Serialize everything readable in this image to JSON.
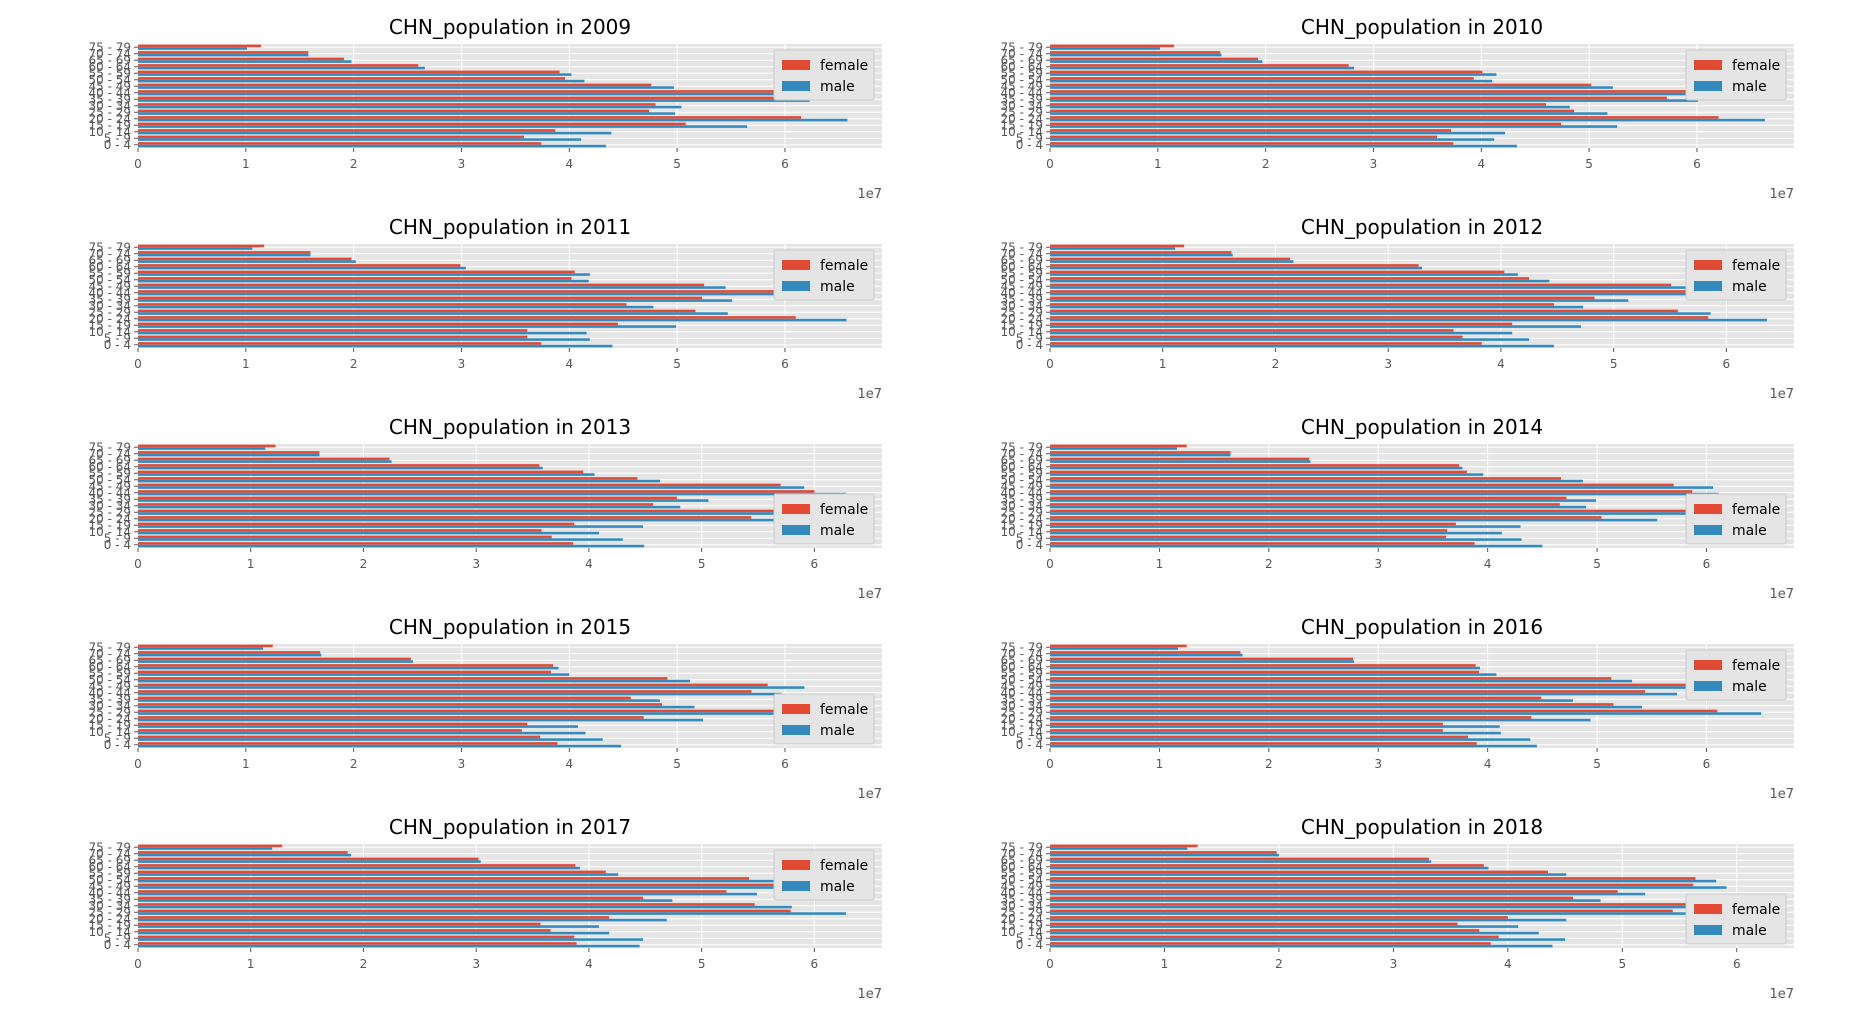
{
  "colors": {
    "female": "#E24A33",
    "male": "#348ABD",
    "axes_bg": "#E5E5E5",
    "grid": "#FFFFFF",
    "tick_text": "#555555",
    "legend_bg": "#E5E5E5",
    "legend_border": "#CCCCCC"
  },
  "chart_data": [
    {
      "type": "bar",
      "orientation": "horizontal",
      "title": "CHN_population in 2009",
      "categories": [
        "0 - 4",
        "5 - 9",
        "10 - 14",
        "15 - 19",
        "20 - 24",
        "25 - 29",
        "30 - 34",
        "35 - 39",
        "40 - 44",
        "45 - 49",
        "50 - 54",
        "55 - 59",
        "60 - 64",
        "65 - 69",
        "70 - 74",
        "75 - 79"
      ],
      "series": [
        {
          "name": "female",
          "values": [
            37400000,
            35800000,
            38700000,
            50800000,
            61500000,
            47400000,
            48000000,
            59100000,
            59000000,
            47600000,
            39600000,
            39100000,
            26000000,
            19100000,
            15800000,
            11400000
          ]
        },
        {
          "name": "male",
          "values": [
            43400000,
            41100000,
            43900000,
            56500000,
            65800000,
            49800000,
            50400000,
            62300000,
            61900000,
            49700000,
            41400000,
            40200000,
            26600000,
            19800000,
            15800000,
            10100000
          ]
        }
      ],
      "xlim": [
        0,
        69000000
      ],
      "xticks": [
        0,
        10000000,
        20000000,
        30000000,
        40000000,
        50000000,
        60000000
      ],
      "xtick_labels": [
        "0",
        "1",
        "2",
        "3",
        "4",
        "5",
        "6"
      ],
      "x_offset_label": "1e7",
      "legend": "upper-right",
      "grid": true
    },
    {
      "type": "bar",
      "orientation": "horizontal",
      "title": "CHN_population in 2010",
      "categories": [
        "0 - 4",
        "5 - 9",
        "10 - 14",
        "15 - 19",
        "20 - 24",
        "25 - 29",
        "30 - 34",
        "35 - 39",
        "40 - 44",
        "45 - 49",
        "50 - 54",
        "55 - 59",
        "60 - 64",
        "65 - 69",
        "70 - 74",
        "75 - 79"
      ],
      "series": [
        {
          "name": "female",
          "values": [
            37400000,
            35900000,
            37200000,
            47400000,
            62000000,
            48600000,
            46000000,
            57200000,
            60100000,
            50200000,
            39300000,
            40100000,
            27700000,
            19300000,
            15800000,
            11500000
          ]
        },
        {
          "name": "male",
          "values": [
            43300000,
            41200000,
            42200000,
            52600000,
            66300000,
            51700000,
            48200000,
            60100000,
            62900000,
            52200000,
            41000000,
            41400000,
            28200000,
            19700000,
            15900000,
            10200000
          ]
        }
      ],
      "xlim": [
        0,
        69000000
      ],
      "xticks": [
        0,
        10000000,
        20000000,
        30000000,
        40000000,
        50000000,
        60000000
      ],
      "xtick_labels": [
        "0",
        "1",
        "2",
        "3",
        "4",
        "5",
        "6"
      ],
      "x_offset_label": "1e7",
      "legend": "upper-right",
      "grid": true
    },
    {
      "type": "bar",
      "orientation": "horizontal",
      "title": "CHN_population in 2011",
      "categories": [
        "0 - 4",
        "5 - 9",
        "10 - 14",
        "15 - 19",
        "20 - 24",
        "25 - 29",
        "30 - 34",
        "35 - 39",
        "40 - 44",
        "45 - 49",
        "50 - 54",
        "55 - 59",
        "60 - 64",
        "65 - 69",
        "70 - 74",
        "75 - 79"
      ],
      "series": [
        {
          "name": "female",
          "values": [
            37400000,
            36100000,
            36100000,
            44500000,
            61000000,
            51700000,
            45300000,
            52300000,
            59100000,
            52500000,
            40200000,
            40500000,
            29900000,
            19800000,
            16000000,
            11700000
          ]
        },
        {
          "name": "male",
          "values": [
            44000000,
            41900000,
            41600000,
            49900000,
            65700000,
            54700000,
            47800000,
            55100000,
            60300000,
            54500000,
            41800000,
            41900000,
            30400000,
            20200000,
            16000000,
            10600000
          ]
        }
      ],
      "xlim": [
        0,
        69000000
      ],
      "xticks": [
        0,
        10000000,
        20000000,
        30000000,
        40000000,
        50000000,
        60000000
      ],
      "xtick_labels": [
        "0",
        "1",
        "2",
        "3",
        "4",
        "5",
        "6"
      ],
      "x_offset_label": "1e7",
      "legend": "upper-right",
      "grid": true
    },
    {
      "type": "bar",
      "orientation": "horizontal",
      "title": "CHN_population in 2012",
      "categories": [
        "0 - 4",
        "5 - 9",
        "10 - 14",
        "15 - 19",
        "20 - 24",
        "25 - 29",
        "30 - 34",
        "35 - 39",
        "40 - 44",
        "45 - 49",
        "50 - 54",
        "55 - 59",
        "60 - 64",
        "65 - 69",
        "70 - 74",
        "75 - 79"
      ],
      "series": [
        {
          "name": "female",
          "values": [
            38300000,
            36600000,
            35800000,
            41000000,
            58400000,
            55700000,
            44700000,
            48300000,
            58200000,
            55100000,
            42500000,
            40300000,
            32700000,
            21300000,
            16100000,
            11900000
          ]
        },
        {
          "name": "male",
          "values": [
            44700000,
            42500000,
            41000000,
            47100000,
            63600000,
            58600000,
            47300000,
            51300000,
            61600000,
            57200000,
            44300000,
            41500000,
            33000000,
            21600000,
            16200000,
            11100000
          ]
        }
      ],
      "xlim": [
        0,
        66000000
      ],
      "xticks": [
        0,
        10000000,
        20000000,
        30000000,
        40000000,
        50000000,
        60000000
      ],
      "xtick_labels": [
        "0",
        "1",
        "2",
        "3",
        "4",
        "5",
        "6"
      ],
      "x_offset_label": "1e7",
      "legend": "upper-right",
      "grid": true
    },
    {
      "type": "bar",
      "orientation": "horizontal",
      "title": "CHN_population in 2013",
      "categories": [
        "0 - 4",
        "5 - 9",
        "10 - 14",
        "15 - 19",
        "20 - 24",
        "25 - 29",
        "30 - 34",
        "35 - 39",
        "40 - 44",
        "45 - 49",
        "50 - 54",
        "55 - 59",
        "60 - 64",
        "65 - 69",
        "70 - 74",
        "75 - 79"
      ],
      "series": [
        {
          "name": "female",
          "values": [
            38600000,
            36700000,
            35800000,
            38700000,
            54400000,
            58300000,
            45700000,
            47800000,
            60000000,
            57000000,
            44300000,
            39500000,
            35600000,
            22300000,
            16100000,
            12200000
          ]
        },
        {
          "name": "male",
          "values": [
            44900000,
            43000000,
            40900000,
            44800000,
            58800000,
            62900000,
            48100000,
            50600000,
            62800000,
            59100000,
            46300000,
            40500000,
            35900000,
            22500000,
            16100000,
            11300000
          ]
        }
      ],
      "xlim": [
        0,
        66000000
      ],
      "xticks": [
        0,
        10000000,
        20000000,
        30000000,
        40000000,
        50000000,
        60000000
      ],
      "xtick_labels": [
        "0",
        "1",
        "2",
        "3",
        "4",
        "5",
        "6"
      ],
      "x_offset_label": "1e7",
      "legend": "middle-right",
      "grid": true
    },
    {
      "type": "bar",
      "orientation": "horizontal",
      "title": "CHN_population in 2014",
      "categories": [
        "0 - 4",
        "5 - 9",
        "10 - 14",
        "15 - 19",
        "20 - 24",
        "25 - 29",
        "30 - 34",
        "35 - 39",
        "40 - 44",
        "45 - 49",
        "50 - 54",
        "55 - 59",
        "60 - 64",
        "65 - 69",
        "70 - 74",
        "75 - 79"
      ],
      "series": [
        {
          "name": "female",
          "values": [
            38800000,
            36200000,
            36300000,
            37100000,
            50400000,
            59900000,
            46600000,
            47200000,
            58700000,
            57000000,
            46700000,
            38100000,
            37400000,
            23700000,
            16500000,
            12500000
          ]
        },
        {
          "name": "male",
          "values": [
            45000000,
            43100000,
            41300000,
            43000000,
            55500000,
            62800000,
            49000000,
            49900000,
            61100000,
            60600000,
            48700000,
            39600000,
            37700000,
            23800000,
            16500000,
            11600000
          ]
        }
      ],
      "xlim": [
        0,
        68000000
      ],
      "xticks": [
        0,
        10000000,
        20000000,
        30000000,
        40000000,
        50000000,
        60000000
      ],
      "xtick_labels": [
        "0",
        "1",
        "2",
        "3",
        "4",
        "5",
        "6"
      ],
      "x_offset_label": "1e7",
      "legend": "middle-right",
      "grid": true
    },
    {
      "type": "bar",
      "orientation": "horizontal",
      "title": "CHN_population in 2015",
      "categories": [
        "0 - 4",
        "5 - 9",
        "10 - 14",
        "15 - 19",
        "20 - 24",
        "25 - 29",
        "30 - 34",
        "35 - 39",
        "40 - 44",
        "45 - 49",
        "50 - 54",
        "55 - 59",
        "60 - 64",
        "65 - 69",
        "70 - 74",
        "75 - 79"
      ],
      "series": [
        {
          "name": "female",
          "values": [
            38900000,
            37300000,
            35600000,
            36100000,
            46900000,
            61500000,
            48600000,
            45700000,
            56900000,
            58400000,
            49100000,
            38300000,
            38500000,
            25300000,
            16900000,
            12500000
          ]
        },
        {
          "name": "male",
          "values": [
            44800000,
            43100000,
            41500000,
            40800000,
            52400000,
            65500000,
            51600000,
            48400000,
            59700000,
            61800000,
            51200000,
            40000000,
            39000000,
            25500000,
            17000000,
            11600000
          ]
        }
      ],
      "xlim": [
        0,
        69000000
      ],
      "xticks": [
        0,
        10000000,
        20000000,
        30000000,
        40000000,
        50000000,
        60000000
      ],
      "xtick_labels": [
        "0",
        "1",
        "2",
        "3",
        "4",
        "5",
        "6"
      ],
      "x_offset_label": "1e7",
      "legend": "middle-right",
      "grid": true
    },
    {
      "type": "bar",
      "orientation": "horizontal",
      "title": "CHN_population in 2016",
      "categories": [
        "0 - 4",
        "5 - 9",
        "10 - 14",
        "15 - 19",
        "20 - 24",
        "25 - 29",
        "30 - 34",
        "35 - 39",
        "40 - 44",
        "45 - 49",
        "50 - 54",
        "55 - 59",
        "60 - 64",
        "65 - 69",
        "70 - 74",
        "75 - 79"
      ],
      "series": [
        {
          "name": "female",
          "values": [
            39000000,
            38200000,
            35900000,
            35900000,
            44000000,
            61000000,
            51500000,
            44900000,
            54400000,
            59000000,
            51300000,
            39200000,
            38900000,
            27700000,
            17400000,
            12500000
          ]
        },
        {
          "name": "male",
          "values": [
            44500000,
            43900000,
            41200000,
            41100000,
            49400000,
            65000000,
            54100000,
            47800000,
            57300000,
            62000000,
            53200000,
            40800000,
            39300000,
            27800000,
            17600000,
            11700000
          ]
        }
      ],
      "xlim": [
        0,
        68000000
      ],
      "xticks": [
        0,
        10000000,
        20000000,
        30000000,
        40000000,
        50000000,
        60000000
      ],
      "xtick_labels": [
        "0",
        "1",
        "2",
        "3",
        "4",
        "5",
        "6"
      ],
      "x_offset_label": "1e7",
      "legend": "upper-right",
      "grid": true
    },
    {
      "type": "bar",
      "orientation": "horizontal",
      "title": "CHN_population in 2017",
      "categories": [
        "0 - 4",
        "5 - 9",
        "10 - 14",
        "15 - 19",
        "20 - 24",
        "25 - 29",
        "30 - 34",
        "35 - 39",
        "40 - 44",
        "45 - 49",
        "50 - 54",
        "55 - 59",
        "60 - 64",
        "65 - 69",
        "70 - 74",
        "75 - 79"
      ],
      "series": [
        {
          "name": "female",
          "values": [
            38900000,
            38700000,
            36600000,
            35700000,
            41800000,
            57900000,
            54700000,
            44800000,
            52200000,
            57500000,
            54200000,
            41500000,
            38800000,
            30200000,
            18600000,
            12800000
          ]
        },
        {
          "name": "male",
          "values": [
            44500000,
            44800000,
            41800000,
            40900000,
            46900000,
            62800000,
            58000000,
            47400000,
            54900000,
            60400000,
            56400000,
            42600000,
            39200000,
            30400000,
            18900000,
            11900000
          ]
        }
      ],
      "xlim": [
        0,
        66000000
      ],
      "xticks": [
        0,
        10000000,
        20000000,
        30000000,
        40000000,
        50000000,
        60000000
      ],
      "xtick_labels": [
        "0",
        "1",
        "2",
        "3",
        "4",
        "5",
        "6"
      ],
      "x_offset_label": "1e7",
      "legend": "upper-right",
      "grid": true
    },
    {
      "type": "bar",
      "orientation": "horizontal",
      "title": "CHN_population in 2018",
      "categories": [
        "0 - 4",
        "5 - 9",
        "10 - 14",
        "15 - 19",
        "20 - 24",
        "25 - 29",
        "30 - 34",
        "35 - 39",
        "40 - 44",
        "45 - 49",
        "50 - 54",
        "55 - 59",
        "60 - 64",
        "65 - 69",
        "70 - 74",
        "75 - 79"
      ],
      "series": [
        {
          "name": "female",
          "values": [
            38500000,
            39200000,
            37500000,
            35600000,
            40000000,
            54400000,
            57900000,
            45700000,
            49600000,
            56200000,
            56400000,
            43500000,
            37900000,
            33100000,
            19800000,
            12900000
          ]
        },
        {
          "name": "male",
          "values": [
            43900000,
            45000000,
            42700000,
            40900000,
            45100000,
            59400000,
            61600000,
            48100000,
            52000000,
            59100000,
            58200000,
            45100000,
            38300000,
            33300000,
            20000000,
            12000000
          ]
        }
      ],
      "xlim": [
        0,
        65000000
      ],
      "xticks": [
        0,
        10000000,
        20000000,
        30000000,
        40000000,
        50000000,
        60000000
      ],
      "xtick_labels": [
        "0",
        "1",
        "2",
        "3",
        "4",
        "5",
        "6"
      ],
      "x_offset_label": "1e7",
      "legend": "middle-right",
      "grid": true
    }
  ]
}
